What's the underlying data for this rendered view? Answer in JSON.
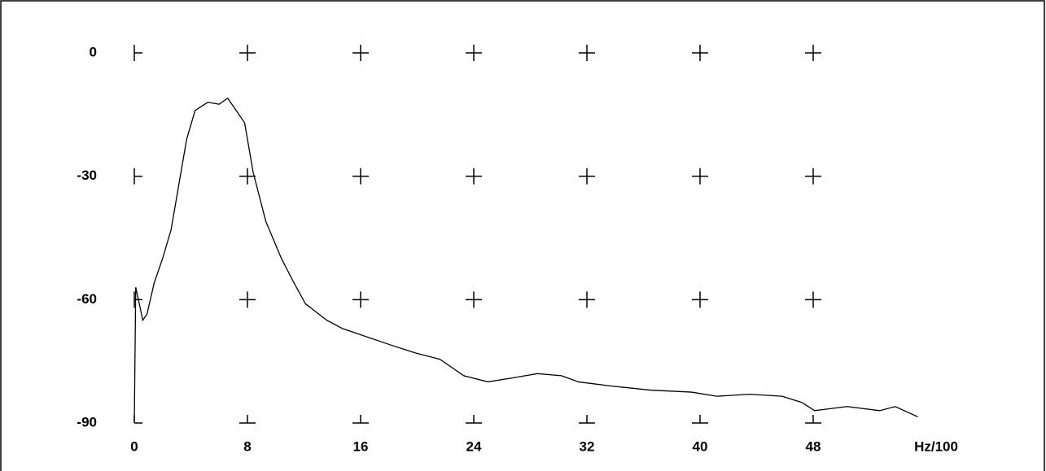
{
  "chart_data": {
    "type": "line",
    "xlabel": "Hz/100",
    "x": [
      0,
      0.1,
      0.6,
      0.9,
      1.4,
      2.0,
      2.6,
      3.2,
      3.7,
      4.3,
      5.2,
      6.0,
      6.6,
      7.2,
      7.8,
      8.4,
      9.3,
      10.4,
      11.3,
      12.1,
      13.6,
      14.7,
      16.4,
      18.1,
      19.9,
      21.6,
      23.3,
      25.0,
      26.8,
      28.5,
      30.2,
      31.4,
      33.7,
      36.5,
      39.4,
      41.2,
      43.5,
      45.8,
      47.2,
      48.1,
      50.4,
      52.7,
      53.8,
      55.4
    ],
    "values": [
      -90,
      -57,
      -65,
      -63.5,
      -56,
      -50,
      -43,
      -31,
      -21,
      -14,
      -12,
      -12.5,
      -11,
      -14,
      -17,
      -29,
      -41,
      -50,
      -56,
      -61,
      -65,
      -67,
      -69,
      -71,
      -73,
      -74.5,
      -78.5,
      -80,
      -79,
      -78,
      -78.5,
      -80,
      -81,
      -82,
      -82.5,
      -83.5,
      -83,
      -83.5,
      -85,
      -87,
      -86,
      -87,
      -86,
      -88.5
    ],
    "color": "#000000",
    "xlim": [
      0,
      60
    ],
    "ylim": [
      -90,
      0
    ],
    "xticks": [
      0,
      8,
      16,
      24,
      32,
      40,
      48
    ],
    "yticks": [
      0,
      -30,
      -60,
      -90
    ],
    "grid": true
  }
}
